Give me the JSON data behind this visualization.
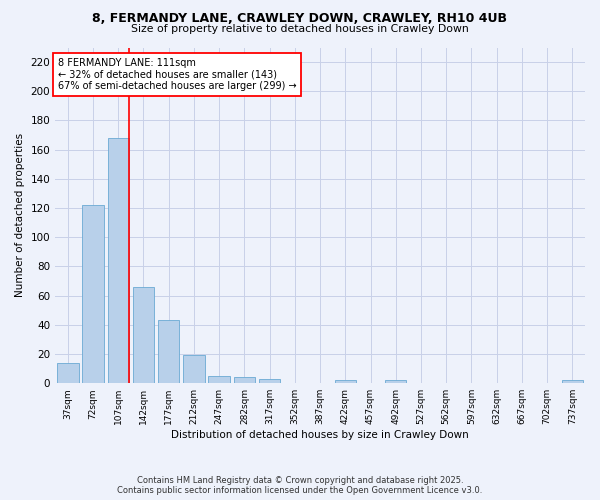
{
  "title1": "8, FERMANDY LANE, CRAWLEY DOWN, CRAWLEY, RH10 4UB",
  "title2": "Size of property relative to detached houses in Crawley Down",
  "xlabel": "Distribution of detached houses by size in Crawley Down",
  "ylabel": "Number of detached properties",
  "categories": [
    "37sqm",
    "72sqm",
    "107sqm",
    "142sqm",
    "177sqm",
    "212sqm",
    "247sqm",
    "282sqm",
    "317sqm",
    "352sqm",
    "387sqm",
    "422sqm",
    "457sqm",
    "492sqm",
    "527sqm",
    "562sqm",
    "597sqm",
    "632sqm",
    "667sqm",
    "702sqm",
    "737sqm"
  ],
  "values": [
    14,
    122,
    168,
    66,
    43,
    19,
    5,
    4,
    3,
    0,
    0,
    2,
    0,
    2,
    0,
    0,
    0,
    0,
    0,
    0,
    2
  ],
  "bar_color": "#b8d0ea",
  "bar_edge_color": "#6aaad4",
  "ylim": [
    0,
    230
  ],
  "yticks": [
    0,
    20,
    40,
    60,
    80,
    100,
    120,
    140,
    160,
    180,
    200,
    220
  ],
  "annotation_title": "8 FERMANDY LANE: 111sqm",
  "annotation_line1": "← 32% of detached houses are smaller (143)",
  "annotation_line2": "67% of semi-detached houses are larger (299) →",
  "vline_bar_index": 2,
  "footer1": "Contains HM Land Registry data © Crown copyright and database right 2025.",
  "footer2": "Contains public sector information licensed under the Open Government Licence v3.0.",
  "bg_color": "#eef2fb",
  "grid_color": "#c8d0e8"
}
